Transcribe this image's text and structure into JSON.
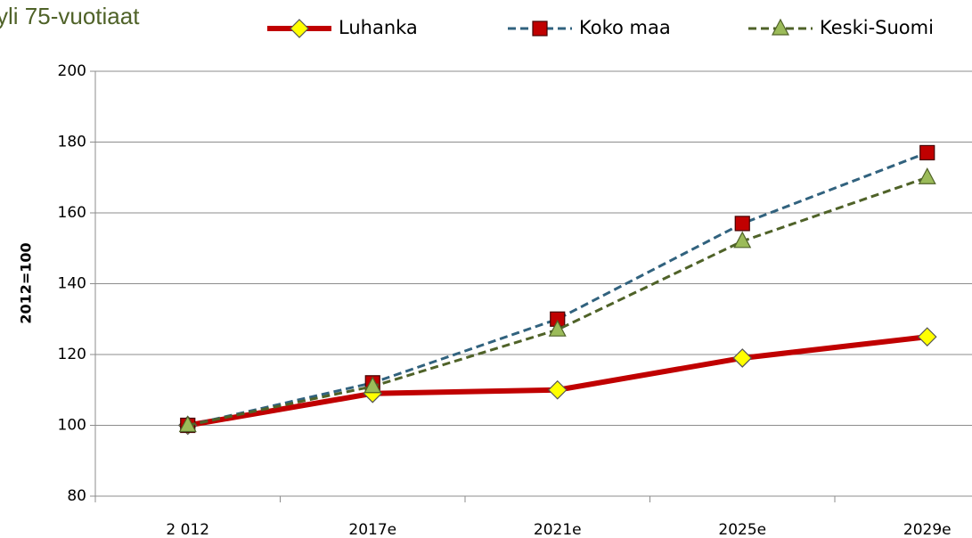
{
  "chart_data": {
    "type": "line",
    "title": "yli 75-vuotiaat",
    "y_label": "2012=100",
    "categories": [
      "2 012",
      "2017e",
      "2021e",
      "2025e",
      "2029e"
    ],
    "series": [
      {
        "name": "Luhanka",
        "color": "#c00000",
        "marker": "diamond",
        "marker_color": "#ffff00",
        "dashed": false,
        "values": [
          100,
          109,
          110,
          119,
          125
        ]
      },
      {
        "name": "Koko maa",
        "color": "#31627e",
        "marker": "square",
        "marker_color": "#c00000",
        "dashed": true,
        "values": [
          100,
          112,
          130,
          157,
          177
        ]
      },
      {
        "name": "Keski-Suomi",
        "color": "#4f6228",
        "marker": "triangle",
        "marker_color": "#9bbb59",
        "dashed": true,
        "values": [
          100,
          111,
          127,
          152,
          170
        ]
      }
    ],
    "ylim": [
      80,
      200
    ],
    "yticks": [
      80,
      100,
      120,
      140,
      160,
      180,
      200
    ],
    "grid": true,
    "legend": "top"
  }
}
